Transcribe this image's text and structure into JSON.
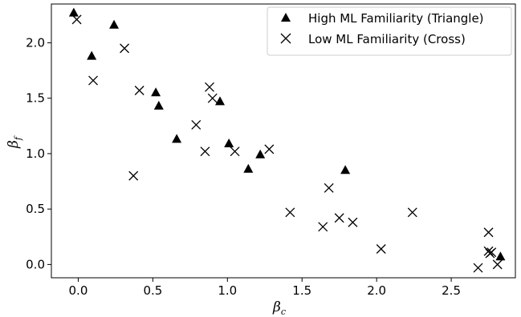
{
  "chart_data": {
    "type": "scatter",
    "xlabel": {
      "main": "β",
      "sub": "c"
    },
    "ylabel": {
      "main": "β",
      "sub": "f"
    },
    "xlim": [
      -0.18,
      2.93
    ],
    "ylim": [
      -0.12,
      2.35
    ],
    "xticks": [
      "0.0",
      "0.5",
      "1.0",
      "1.5",
      "2.0",
      "2.5"
    ],
    "xtick_values": [
      0.0,
      0.5,
      1.0,
      1.5,
      2.0,
      2.5
    ],
    "yticks": [
      "0.0",
      "0.5",
      "1.0",
      "1.5",
      "2.0"
    ],
    "ytick_values": [
      0.0,
      0.5,
      1.0,
      1.5,
      2.0
    ],
    "legend_position": "top-right",
    "grid": false,
    "series": [
      {
        "name": "High ML Familiarity (Triangle)",
        "marker": "triangle",
        "color": "#000000",
        "points": [
          [
            -0.03,
            2.27
          ],
          [
            0.09,
            1.88
          ],
          [
            0.24,
            2.16
          ],
          [
            0.52,
            1.55
          ],
          [
            0.54,
            1.43
          ],
          [
            0.66,
            1.13
          ],
          [
            0.95,
            1.47
          ],
          [
            1.01,
            1.09
          ],
          [
            1.14,
            0.86
          ],
          [
            1.22,
            0.99
          ],
          [
            1.79,
            0.85
          ],
          [
            2.83,
            0.07
          ]
        ]
      },
      {
        "name": "Low ML Familiarity (Cross)",
        "marker": "cross",
        "color": "#000000",
        "points": [
          [
            -0.01,
            2.21
          ],
          [
            0.1,
            1.66
          ],
          [
            0.31,
            1.95
          ],
          [
            0.37,
            0.8
          ],
          [
            0.41,
            1.57
          ],
          [
            0.79,
            1.26
          ],
          [
            0.85,
            1.02
          ],
          [
            0.88,
            1.6
          ],
          [
            0.9,
            1.5
          ],
          [
            1.05,
            1.02
          ],
          [
            1.28,
            1.04
          ],
          [
            1.42,
            0.47
          ],
          [
            1.64,
            0.34
          ],
          [
            1.68,
            0.69
          ],
          [
            1.75,
            0.42
          ],
          [
            1.84,
            0.38
          ],
          [
            2.03,
            0.14
          ],
          [
            2.24,
            0.47
          ],
          [
            2.68,
            -0.03
          ],
          [
            2.75,
            0.29
          ],
          [
            2.75,
            0.12
          ],
          [
            2.76,
            0.1
          ],
          [
            2.77,
            0.11
          ],
          [
            2.81,
            0.0
          ]
        ]
      }
    ]
  }
}
